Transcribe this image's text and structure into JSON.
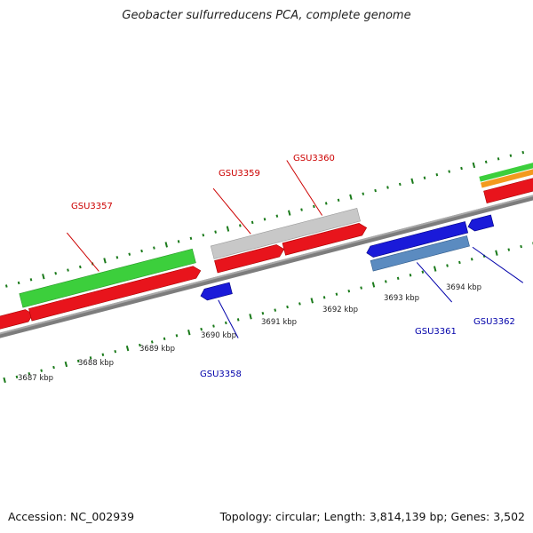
{
  "title": "Geobacter sulfurreducens PCA, complete genome",
  "footer": {
    "accession": "Accession: NC_002939",
    "summary": "Topology: circular; Length: 3,814,139 bp; Genes: 3,502"
  },
  "colors": {
    "forward_cds": "#e8141c",
    "reverse_cds": "#1a1ad9",
    "rna_green": "#3ccf3c",
    "pseudo_grey": "#c8c8c8",
    "steel_blue": "#5b8bc0",
    "orange": "#f39a1e",
    "forward_label": "#cc0000",
    "reverse_label": "#0000aa",
    "tick": "#1a7a1a",
    "backbone": "#7a7a7a"
  },
  "scale_labels": [
    "3687 kbp",
    "3688 kbp",
    "3689 kbp",
    "3690 kbp",
    "3691 kbp",
    "3692 kbp",
    "3693 kbp",
    "3694 kbp"
  ],
  "gene_labels": [
    {
      "name": "GSU3357",
      "strand": "forward"
    },
    {
      "name": "GSU3358",
      "strand": "reverse"
    },
    {
      "name": "GSU3359",
      "strand": "forward"
    },
    {
      "name": "GSU3360",
      "strand": "forward"
    },
    {
      "name": "GSU3361",
      "strand": "reverse"
    },
    {
      "name": "GSU3362",
      "strand": "reverse"
    }
  ]
}
